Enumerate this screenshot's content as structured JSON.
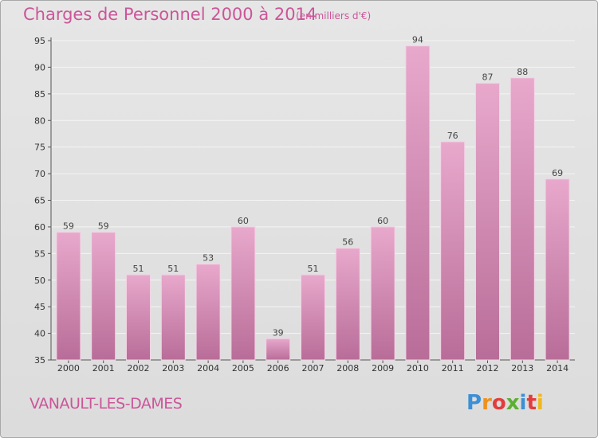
{
  "header": {
    "title": "Charges de Personnel 2000 à 2014",
    "subtitle": "(en milliers d'€)"
  },
  "footer": {
    "commune": "VANAULT-LES-DAMES",
    "logo_text": "Proxiti",
    "logo_colors": [
      "#3b8fd6",
      "#f0901e",
      "#e23d3d",
      "#5bb030",
      "#3b8fd6",
      "#e23d3d",
      "#f0b81e"
    ]
  },
  "colors": {
    "bar_top": "#e8a8cc",
    "bar_bottom": "#b86d98",
    "accent": "#cc5599"
  },
  "chart_data": {
    "type": "bar",
    "title": "Charges de Personnel 2000 à 2014",
    "subtitle": "(en milliers d'€)",
    "categories": [
      "2000",
      "2001",
      "2002",
      "2003",
      "2004",
      "2005",
      "2006",
      "2007",
      "2008",
      "2009",
      "2010",
      "2011",
      "2012",
      "2013",
      "2014"
    ],
    "values": [
      59,
      59,
      51,
      51,
      53,
      60,
      39,
      51,
      56,
      60,
      94,
      76,
      87,
      88,
      69
    ],
    "ylim": [
      35,
      95
    ],
    "yticks": [
      35,
      40,
      45,
      50,
      55,
      60,
      65,
      70,
      75,
      80,
      85,
      90,
      95
    ],
    "grid": true,
    "data_labels": true
  }
}
